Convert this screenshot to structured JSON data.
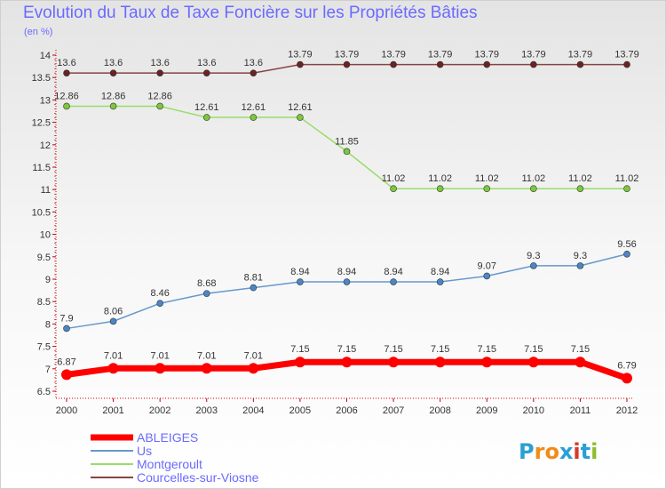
{
  "title": "Evolution du Taux de Taxe Foncière sur les Propriétés Bâties",
  "unit_label": "(en %)",
  "logo": {
    "text": "Proxiti",
    "letter_colors": [
      "#2a9fd6",
      "#f08c1a",
      "#f08c1a",
      "#2a9fd6",
      "#d43a2a",
      "#2a9fd6",
      "#8fbc2f"
    ]
  },
  "chart_data": {
    "type": "line",
    "title": "Evolution du Taux de Taxe Foncière sur les Propriétés Bâties",
    "ylabel": "(en %)",
    "xlabel": "",
    "x": [
      "2000",
      "2001",
      "2002",
      "2003",
      "2004",
      "2005",
      "2006",
      "2007",
      "2008",
      "2009",
      "2010",
      "2011",
      "2012"
    ],
    "ylim": [
      6.5,
      14
    ],
    "yticks": [
      "6.5",
      "7",
      "7.5",
      "8",
      "8.5",
      "9",
      "9.5",
      "10",
      "10.5",
      "11",
      "11.5",
      "12",
      "12.5",
      "13",
      "13.5",
      "14"
    ],
    "grid": false,
    "legend_position": "bottom-left",
    "series": [
      {
        "name": "ABLEIGES",
        "color": "#ff0000",
        "marker_color": "#ff0000",
        "width": 7,
        "marker_r": 6,
        "values": [
          6.87,
          7.01,
          7.01,
          7.01,
          7.01,
          7.15,
          7.15,
          7.15,
          7.15,
          7.15,
          7.15,
          7.15,
          6.79
        ],
        "labels": [
          "6.87",
          "7.01",
          "7.01",
          "7.01",
          "7.01",
          "7.15",
          "7.15",
          "7.15",
          "7.15",
          "7.15",
          "7.15",
          "7.15",
          "6.79"
        ]
      },
      {
        "name": "Us",
        "color": "#6699cc",
        "marker_color": "#4a86c8",
        "width": 1.5,
        "marker_r": 3.5,
        "values": [
          7.9,
          8.06,
          8.46,
          8.68,
          8.81,
          8.94,
          8.94,
          8.94,
          8.94,
          9.07,
          9.3,
          9.3,
          9.56
        ],
        "labels": [
          "7.9",
          "8.06",
          "8.46",
          "8.68",
          "8.81",
          "8.94",
          "8.94",
          "8.94",
          "8.94",
          "9.07",
          "9.3",
          "9.3",
          "9.56"
        ]
      },
      {
        "name": "Montgeroult",
        "color": "#99dd66",
        "marker_color": "#7cc83c",
        "width": 1.5,
        "marker_r": 3.5,
        "values": [
          12.86,
          12.86,
          12.86,
          12.61,
          12.61,
          12.61,
          11.85,
          11.02,
          11.02,
          11.02,
          11.02,
          11.02,
          11.02
        ],
        "labels": [
          "12.86",
          "12.86",
          "12.86",
          "12.61",
          "12.61",
          "12.61",
          "11.85",
          "11.02",
          "11.02",
          "11.02",
          "11.02",
          "11.02",
          "11.02"
        ]
      },
      {
        "name": "Courcelles-sur-Viosne",
        "color": "#884444",
        "marker_color": "#6b2222",
        "width": 1.5,
        "marker_r": 3.5,
        "values": [
          13.6,
          13.6,
          13.6,
          13.6,
          13.6,
          13.79,
          13.79,
          13.79,
          13.79,
          13.79,
          13.79,
          13.79,
          13.79
        ],
        "labels": [
          "13.6",
          "13.6",
          "13.6",
          "13.6",
          "13.6",
          "13.79",
          "13.79",
          "13.79",
          "13.79",
          "13.79",
          "13.79",
          "13.79",
          "13.79"
        ]
      }
    ]
  }
}
